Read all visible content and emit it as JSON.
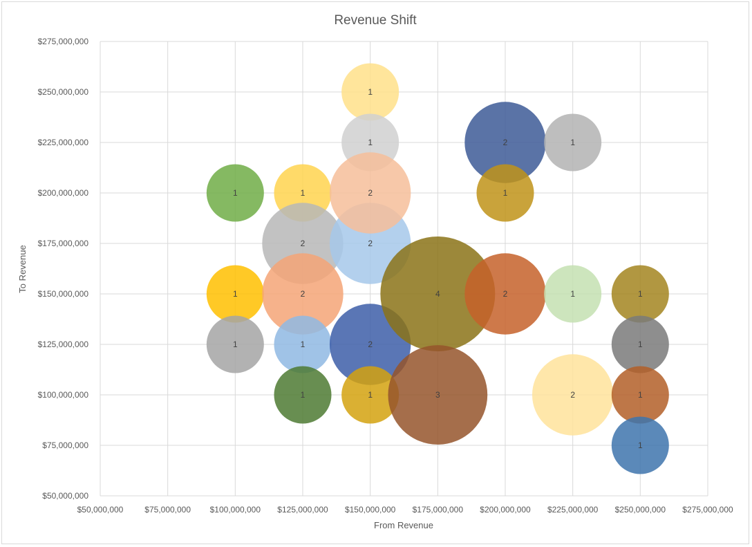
{
  "chart_data": {
    "type": "bubble",
    "title": "Revenue Shift",
    "xlabel": "From Revenue",
    "ylabel": "To Revenue",
    "xlim": [
      50000000,
      275000000
    ],
    "ylim": [
      50000000,
      275000000
    ],
    "x_ticks": [
      "$50,000,000",
      "$75,000,000",
      "$100,000,000",
      "$125,000,000",
      "$150,000,000",
      "$175,000,000",
      "$200,000,000",
      "$225,000,000",
      "$250,000,000",
      "$275,000,000"
    ],
    "y_ticks": [
      "$50,000,000",
      "$75,000,000",
      "$100,000,000",
      "$125,000,000",
      "$150,000,000",
      "$175,000,000",
      "$200,000,000",
      "$225,000,000",
      "$250,000,000",
      "$275,000,000"
    ],
    "grid": true,
    "legend": "none",
    "points": [
      {
        "x": 100000000,
        "y": 200000000,
        "size": 1,
        "color": "#70ad47"
      },
      {
        "x": 100000000,
        "y": 150000000,
        "size": 1,
        "color": "#ffc000"
      },
      {
        "x": 100000000,
        "y": 125000000,
        "size": 1,
        "color": "#a5a5a5"
      },
      {
        "x": 125000000,
        "y": 200000000,
        "size": 1,
        "color": "#ffd34f"
      },
      {
        "x": 125000000,
        "y": 175000000,
        "size": 2,
        "color": "#b7b7b7"
      },
      {
        "x": 125000000,
        "y": 150000000,
        "size": 2,
        "color": "#f4a477"
      },
      {
        "x": 125000000,
        "y": 125000000,
        "size": 1,
        "color": "#8fb9e3"
      },
      {
        "x": 125000000,
        "y": 100000000,
        "size": 1,
        "color": "#4e7a33"
      },
      {
        "x": 150000000,
        "y": 250000000,
        "size": 1,
        "color": "#ffe08a"
      },
      {
        "x": 150000000,
        "y": 225000000,
        "size": 1,
        "color": "#d0d0d0"
      },
      {
        "x": 150000000,
        "y": 175000000,
        "size": 2,
        "color": "#a6c8ea"
      },
      {
        "x": 150000000,
        "y": 200000000,
        "size": 2,
        "color": "#f6be9a"
      },
      {
        "x": 150000000,
        "y": 125000000,
        "size": 2,
        "color": "#3d5ea8"
      },
      {
        "x": 150000000,
        "y": 100000000,
        "size": 1,
        "color": "#d4a20f"
      },
      {
        "x": 175000000,
        "y": 150000000,
        "size": 4,
        "color": "#8b7318"
      },
      {
        "x": 175000000,
        "y": 100000000,
        "size": 3,
        "color": "#95552b"
      },
      {
        "x": 200000000,
        "y": 225000000,
        "size": 2,
        "color": "#3d5a96"
      },
      {
        "x": 200000000,
        "y": 200000000,
        "size": 1,
        "color": "#bf9319"
      },
      {
        "x": 200000000,
        "y": 150000000,
        "size": 2,
        "color": "#c5622a"
      },
      {
        "x": 225000000,
        "y": 225000000,
        "size": 1,
        "color": "#b3b3b3"
      },
      {
        "x": 225000000,
        "y": 150000000,
        "size": 1,
        "color": "#c4e0b1"
      },
      {
        "x": 225000000,
        "y": 100000000,
        "size": 2,
        "color": "#ffe39b"
      },
      {
        "x": 250000000,
        "y": 150000000,
        "size": 1,
        "color": "#a38520"
      },
      {
        "x": 250000000,
        "y": 125000000,
        "size": 1,
        "color": "#7a7a7a"
      },
      {
        "x": 250000000,
        "y": 100000000,
        "size": 1,
        "color": "#b35f28"
      },
      {
        "x": 250000000,
        "y": 75000000,
        "size": 1,
        "color": "#3e74ad"
      }
    ]
  }
}
